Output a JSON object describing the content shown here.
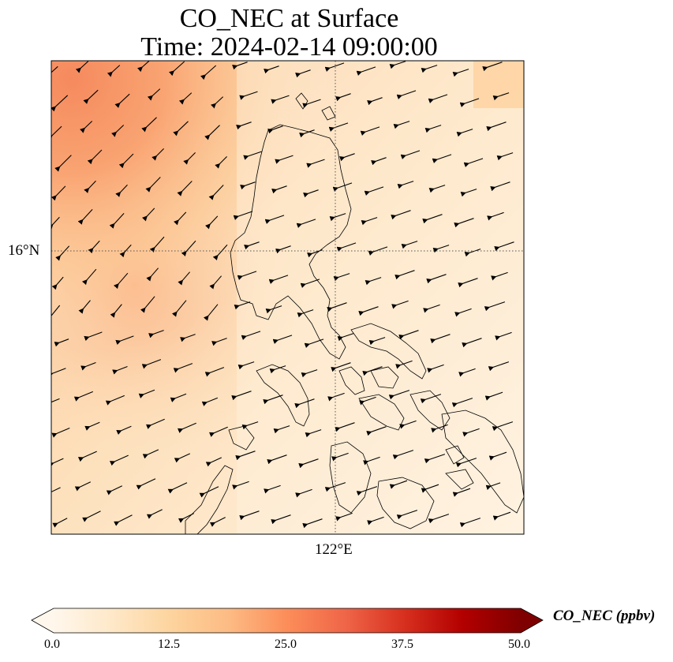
{
  "title": {
    "line1": "CO_NEC at Surface",
    "line2": "Time: 2024-02-14 09:00:00"
  },
  "axes": {
    "lat_tick": "16°N",
    "lon_tick": "122°E"
  },
  "colorbar": {
    "label": "CO_NEC (ppbv)",
    "ticks": [
      "0.0",
      "12.5",
      "25.0",
      "37.5",
      "50.0"
    ],
    "range": [
      0,
      50
    ],
    "colormap": [
      "#fff7ec",
      "#fee8c8",
      "#fdd49e",
      "#fdbb84",
      "#fc8d59",
      "#ef6548",
      "#d7301f",
      "#b30000",
      "#7f0000"
    ]
  },
  "chart_data": {
    "type": "heatmap",
    "variable": "CO_NEC",
    "units": "ppbv",
    "level": "Surface",
    "time": "2024-02-14 09:00:00",
    "gridlines": {
      "lat": [
        16
      ],
      "lon": [
        122
      ]
    },
    "value_range": [
      0,
      50
    ],
    "field_summary": {
      "northwest": 28,
      "west_central": 24,
      "southwest": 14,
      "east": 6,
      "southeast": 4
    },
    "wind_vectors": "shown as arrows, predominantly from east/northeast"
  }
}
